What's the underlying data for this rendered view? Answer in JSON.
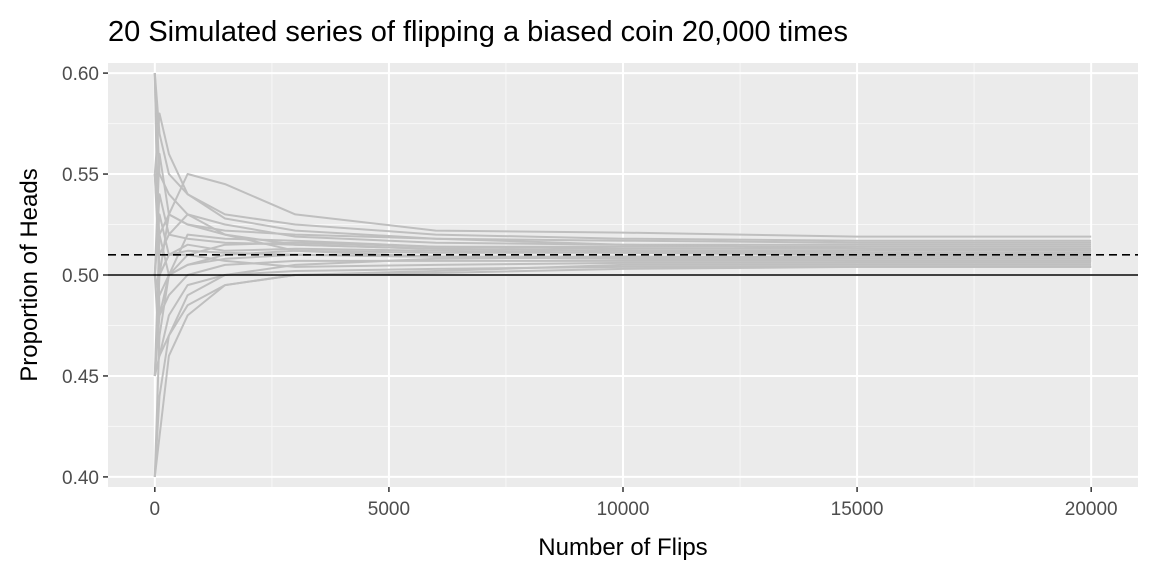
{
  "chart_data": {
    "type": "line",
    "title": "20 Simulated series of flipping a biased coin 20,000 times",
    "xlabel": "Number of Flips",
    "ylabel": "Proportion of Heads",
    "xlim": [
      -1000,
      21000
    ],
    "ylim": [
      0.395,
      0.605
    ],
    "x_ticks": [
      0,
      5000,
      10000,
      15000,
      20000
    ],
    "x_tick_labels": [
      "0",
      "5000",
      "10000",
      "15000",
      "20000"
    ],
    "y_ticks": [
      0.4,
      0.45,
      0.5,
      0.55,
      0.6
    ],
    "y_tick_labels": [
      "0.40",
      "0.45",
      "0.50",
      "0.55",
      "0.60"
    ],
    "grid": true,
    "reference_lines": [
      {
        "y": 0.5,
        "style": "solid",
        "color": "#000000"
      },
      {
        "y": 0.51,
        "style": "dashed",
        "color": "#000000"
      }
    ],
    "series_color": "#bfbfbf",
    "series": [
      {
        "x": [
          0,
          100,
          300,
          700,
          1500,
          3000,
          6000,
          10000,
          15000,
          20000
        ],
        "values": [
          0.6,
          0.5,
          0.53,
          0.55,
          0.545,
          0.53,
          0.522,
          0.521,
          0.519,
          0.519
        ]
      },
      {
        "x": [
          0,
          100,
          300,
          700,
          1500,
          3000,
          6000,
          10000,
          15000,
          20000
        ],
        "values": [
          0.55,
          0.58,
          0.56,
          0.54,
          0.53,
          0.525,
          0.52,
          0.518,
          0.517,
          0.517
        ]
      },
      {
        "x": [
          0,
          100,
          300,
          700,
          1500,
          3000,
          6000,
          10000,
          15000,
          20000
        ],
        "values": [
          0.45,
          0.52,
          0.53,
          0.525,
          0.522,
          0.52,
          0.518,
          0.517,
          0.516,
          0.516
        ]
      },
      {
        "x": [
          0,
          100,
          300,
          700,
          1500,
          3000,
          6000,
          10000,
          15000,
          20000
        ],
        "values": [
          0.5,
          0.54,
          0.52,
          0.53,
          0.525,
          0.519,
          0.516,
          0.515,
          0.515,
          0.515
        ]
      },
      {
        "x": [
          0,
          100,
          300,
          700,
          1500,
          3000,
          6000,
          10000,
          15000,
          20000
        ],
        "values": [
          0.6,
          0.48,
          0.5,
          0.52,
          0.518,
          0.517,
          0.514,
          0.514,
          0.514,
          0.514
        ]
      },
      {
        "x": [
          0,
          100,
          300,
          700,
          1500,
          3000,
          6000,
          10000,
          15000,
          20000
        ],
        "values": [
          0.4,
          0.47,
          0.5,
          0.51,
          0.515,
          0.516,
          0.514,
          0.513,
          0.513,
          0.513
        ]
      },
      {
        "x": [
          0,
          100,
          300,
          700,
          1500,
          3000,
          6000,
          10000,
          15000,
          20000
        ],
        "values": [
          0.5,
          0.56,
          0.53,
          0.525,
          0.52,
          0.515,
          0.513,
          0.512,
          0.512,
          0.512
        ]
      },
      {
        "x": [
          0,
          100,
          300,
          700,
          1500,
          3000,
          6000,
          10000,
          15000,
          20000
        ],
        "values": [
          0.45,
          0.5,
          0.51,
          0.515,
          0.512,
          0.513,
          0.512,
          0.511,
          0.511,
          0.511
        ]
      },
      {
        "x": [
          0,
          100,
          300,
          700,
          1500,
          3000,
          6000,
          10000,
          15000,
          20000
        ],
        "values": [
          0.55,
          0.52,
          0.5,
          0.505,
          0.51,
          0.512,
          0.511,
          0.511,
          0.51,
          0.51
        ]
      },
      {
        "x": [
          0,
          100,
          300,
          700,
          1500,
          3000,
          6000,
          10000,
          15000,
          20000
        ],
        "values": [
          0.4,
          0.44,
          0.47,
          0.49,
          0.5,
          0.505,
          0.508,
          0.509,
          0.509,
          0.509
        ]
      },
      {
        "x": [
          0,
          100,
          300,
          700,
          1500,
          3000,
          6000,
          10000,
          15000,
          20000
        ],
        "values": [
          0.6,
          0.55,
          0.54,
          0.53,
          0.52,
          0.512,
          0.509,
          0.508,
          0.508,
          0.508
        ]
      },
      {
        "x": [
          0,
          100,
          300,
          700,
          1500,
          3000,
          6000,
          10000,
          15000,
          20000
        ],
        "values": [
          0.5,
          0.49,
          0.5,
          0.505,
          0.508,
          0.51,
          0.509,
          0.508,
          0.507,
          0.507
        ]
      },
      {
        "x": [
          0,
          100,
          300,
          700,
          1500,
          3000,
          6000,
          10000,
          15000,
          20000
        ],
        "values": [
          0.45,
          0.48,
          0.49,
          0.5,
          0.505,
          0.507,
          0.507,
          0.507,
          0.507,
          0.507
        ]
      },
      {
        "x": [
          0,
          100,
          300,
          700,
          1500,
          3000,
          6000,
          10000,
          15000,
          20000
        ],
        "values": [
          0.55,
          0.5,
          0.51,
          0.51,
          0.507,
          0.504,
          0.505,
          0.506,
          0.506,
          0.506
        ]
      },
      {
        "x": [
          0,
          100,
          300,
          700,
          1500,
          3000,
          6000,
          10000,
          15000,
          20000
        ],
        "values": [
          0.4,
          0.42,
          0.46,
          0.48,
          0.495,
          0.5,
          0.502,
          0.505,
          0.505,
          0.505
        ]
      },
      {
        "x": [
          0,
          100,
          300,
          700,
          1500,
          3000,
          6000,
          10000,
          15000,
          20000
        ],
        "values": [
          0.5,
          0.46,
          0.48,
          0.495,
          0.5,
          0.502,
          0.503,
          0.504,
          0.504,
          0.504
        ]
      },
      {
        "x": [
          0,
          100,
          300,
          700,
          1500,
          3000,
          6000,
          10000,
          15000,
          20000
        ],
        "values": [
          0.6,
          0.57,
          0.55,
          0.54,
          0.528,
          0.522,
          0.518,
          0.515,
          0.513,
          0.512
        ]
      },
      {
        "x": [
          0,
          100,
          300,
          700,
          1500,
          3000,
          6000,
          10000,
          15000,
          20000
        ],
        "values": [
          0.45,
          0.46,
          0.47,
          0.485,
          0.495,
          0.5,
          0.501,
          0.503,
          0.504,
          0.504
        ]
      },
      {
        "x": [
          0,
          100,
          300,
          700,
          1500,
          3000,
          6000,
          10000,
          15000,
          20000
        ],
        "values": [
          0.55,
          0.51,
          0.52,
          0.518,
          0.516,
          0.515,
          0.513,
          0.512,
          0.511,
          0.51
        ]
      },
      {
        "x": [
          0,
          100,
          300,
          700,
          1500,
          3000,
          6000,
          10000,
          15000,
          20000
        ],
        "values": [
          0.5,
          0.53,
          0.51,
          0.512,
          0.511,
          0.51,
          0.509,
          0.509,
          0.508,
          0.508
        ]
      }
    ]
  }
}
